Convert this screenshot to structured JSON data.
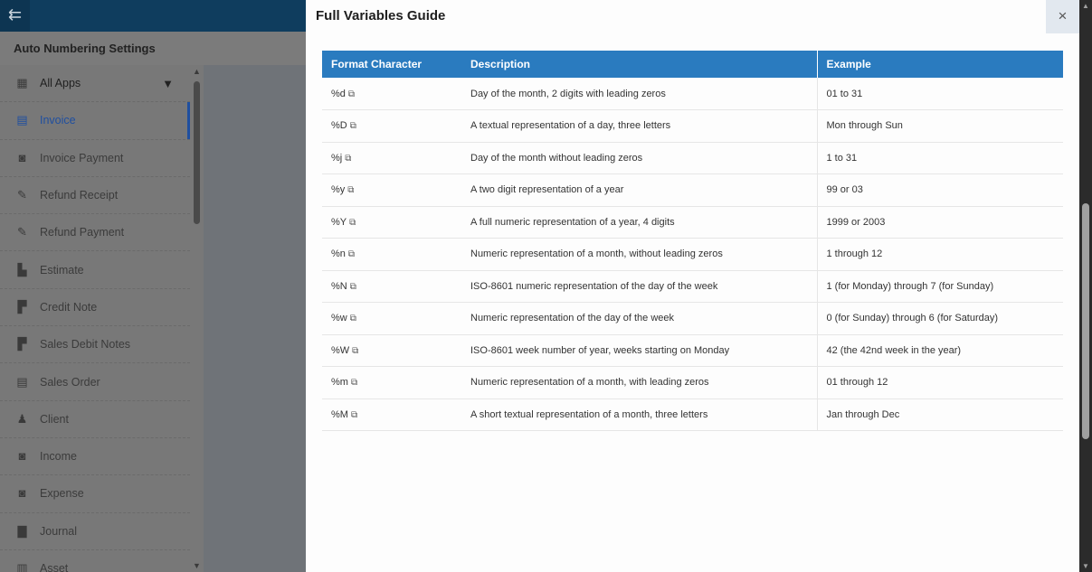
{
  "app": {
    "back_icon": "arrow-left-menu-icon",
    "page_title": "Auto Numbering Settings"
  },
  "sidebar": {
    "items": [
      {
        "label": "All Apps",
        "icon": "grid-icon"
      },
      {
        "label": "Invoice",
        "icon": "invoice-icon",
        "active": true
      },
      {
        "label": "Invoice Payment",
        "icon": "money-icon"
      },
      {
        "label": "Refund Receipt",
        "icon": "receipt-edit-icon"
      },
      {
        "label": "Refund Payment",
        "icon": "receipt-edit-icon"
      },
      {
        "label": "Estimate",
        "icon": "document-chart-icon"
      },
      {
        "label": "Credit Note",
        "icon": "document-minus-icon"
      },
      {
        "label": "Sales Debit Notes",
        "icon": "document-plus-icon"
      },
      {
        "label": "Sales Order",
        "icon": "list-document-icon"
      },
      {
        "label": "Client",
        "icon": "person-icon"
      },
      {
        "label": "Income",
        "icon": "money-plus-icon"
      },
      {
        "label": "Expense",
        "icon": "money-minus-icon"
      },
      {
        "label": "Journal",
        "icon": "journal-icon"
      },
      {
        "label": "Asset",
        "icon": "building-icon"
      }
    ]
  },
  "modal": {
    "title": "Full Variables Guide",
    "close": "×",
    "columns": [
      "Format Character",
      "Description",
      "Example"
    ],
    "rows": [
      [
        "%d",
        "Day of the month, 2 digits with leading zeros",
        "01 to 31"
      ],
      [
        "%D",
        "A textual representation of a day, three letters",
        "Mon through Sun"
      ],
      [
        "%j",
        "Day of the month without leading zeros",
        "1 to 31"
      ],
      [
        "%y",
        "A two digit representation of a year",
        "99 or 03"
      ],
      [
        "%Y",
        "A full numeric representation of a year, 4 digits",
        "1999 or 2003"
      ],
      [
        "%n",
        "Numeric representation of a month, without leading zeros",
        "1 through 12"
      ],
      [
        "%N",
        "ISO-8601 numeric representation of the day of the week",
        "1 (for Monday) through 7 (for Sunday)"
      ],
      [
        "%w",
        "Numeric representation of the day of the week",
        "0 (for Sunday) through 6 (for Saturday)"
      ],
      [
        "%W",
        "ISO-8601 week number of year, weeks starting on Monday",
        "42 (the 42nd week in the year)"
      ],
      [
        "%m",
        "Numeric representation of a month, with leading zeros",
        "01 through 12"
      ],
      [
        "%M",
        "A short textual representation of a month, three letters",
        "Jan through Dec"
      ]
    ]
  },
  "colors": {
    "header": "#2a7bbf",
    "active": "#1f4fa0",
    "topbar": "#0f3d5e"
  }
}
